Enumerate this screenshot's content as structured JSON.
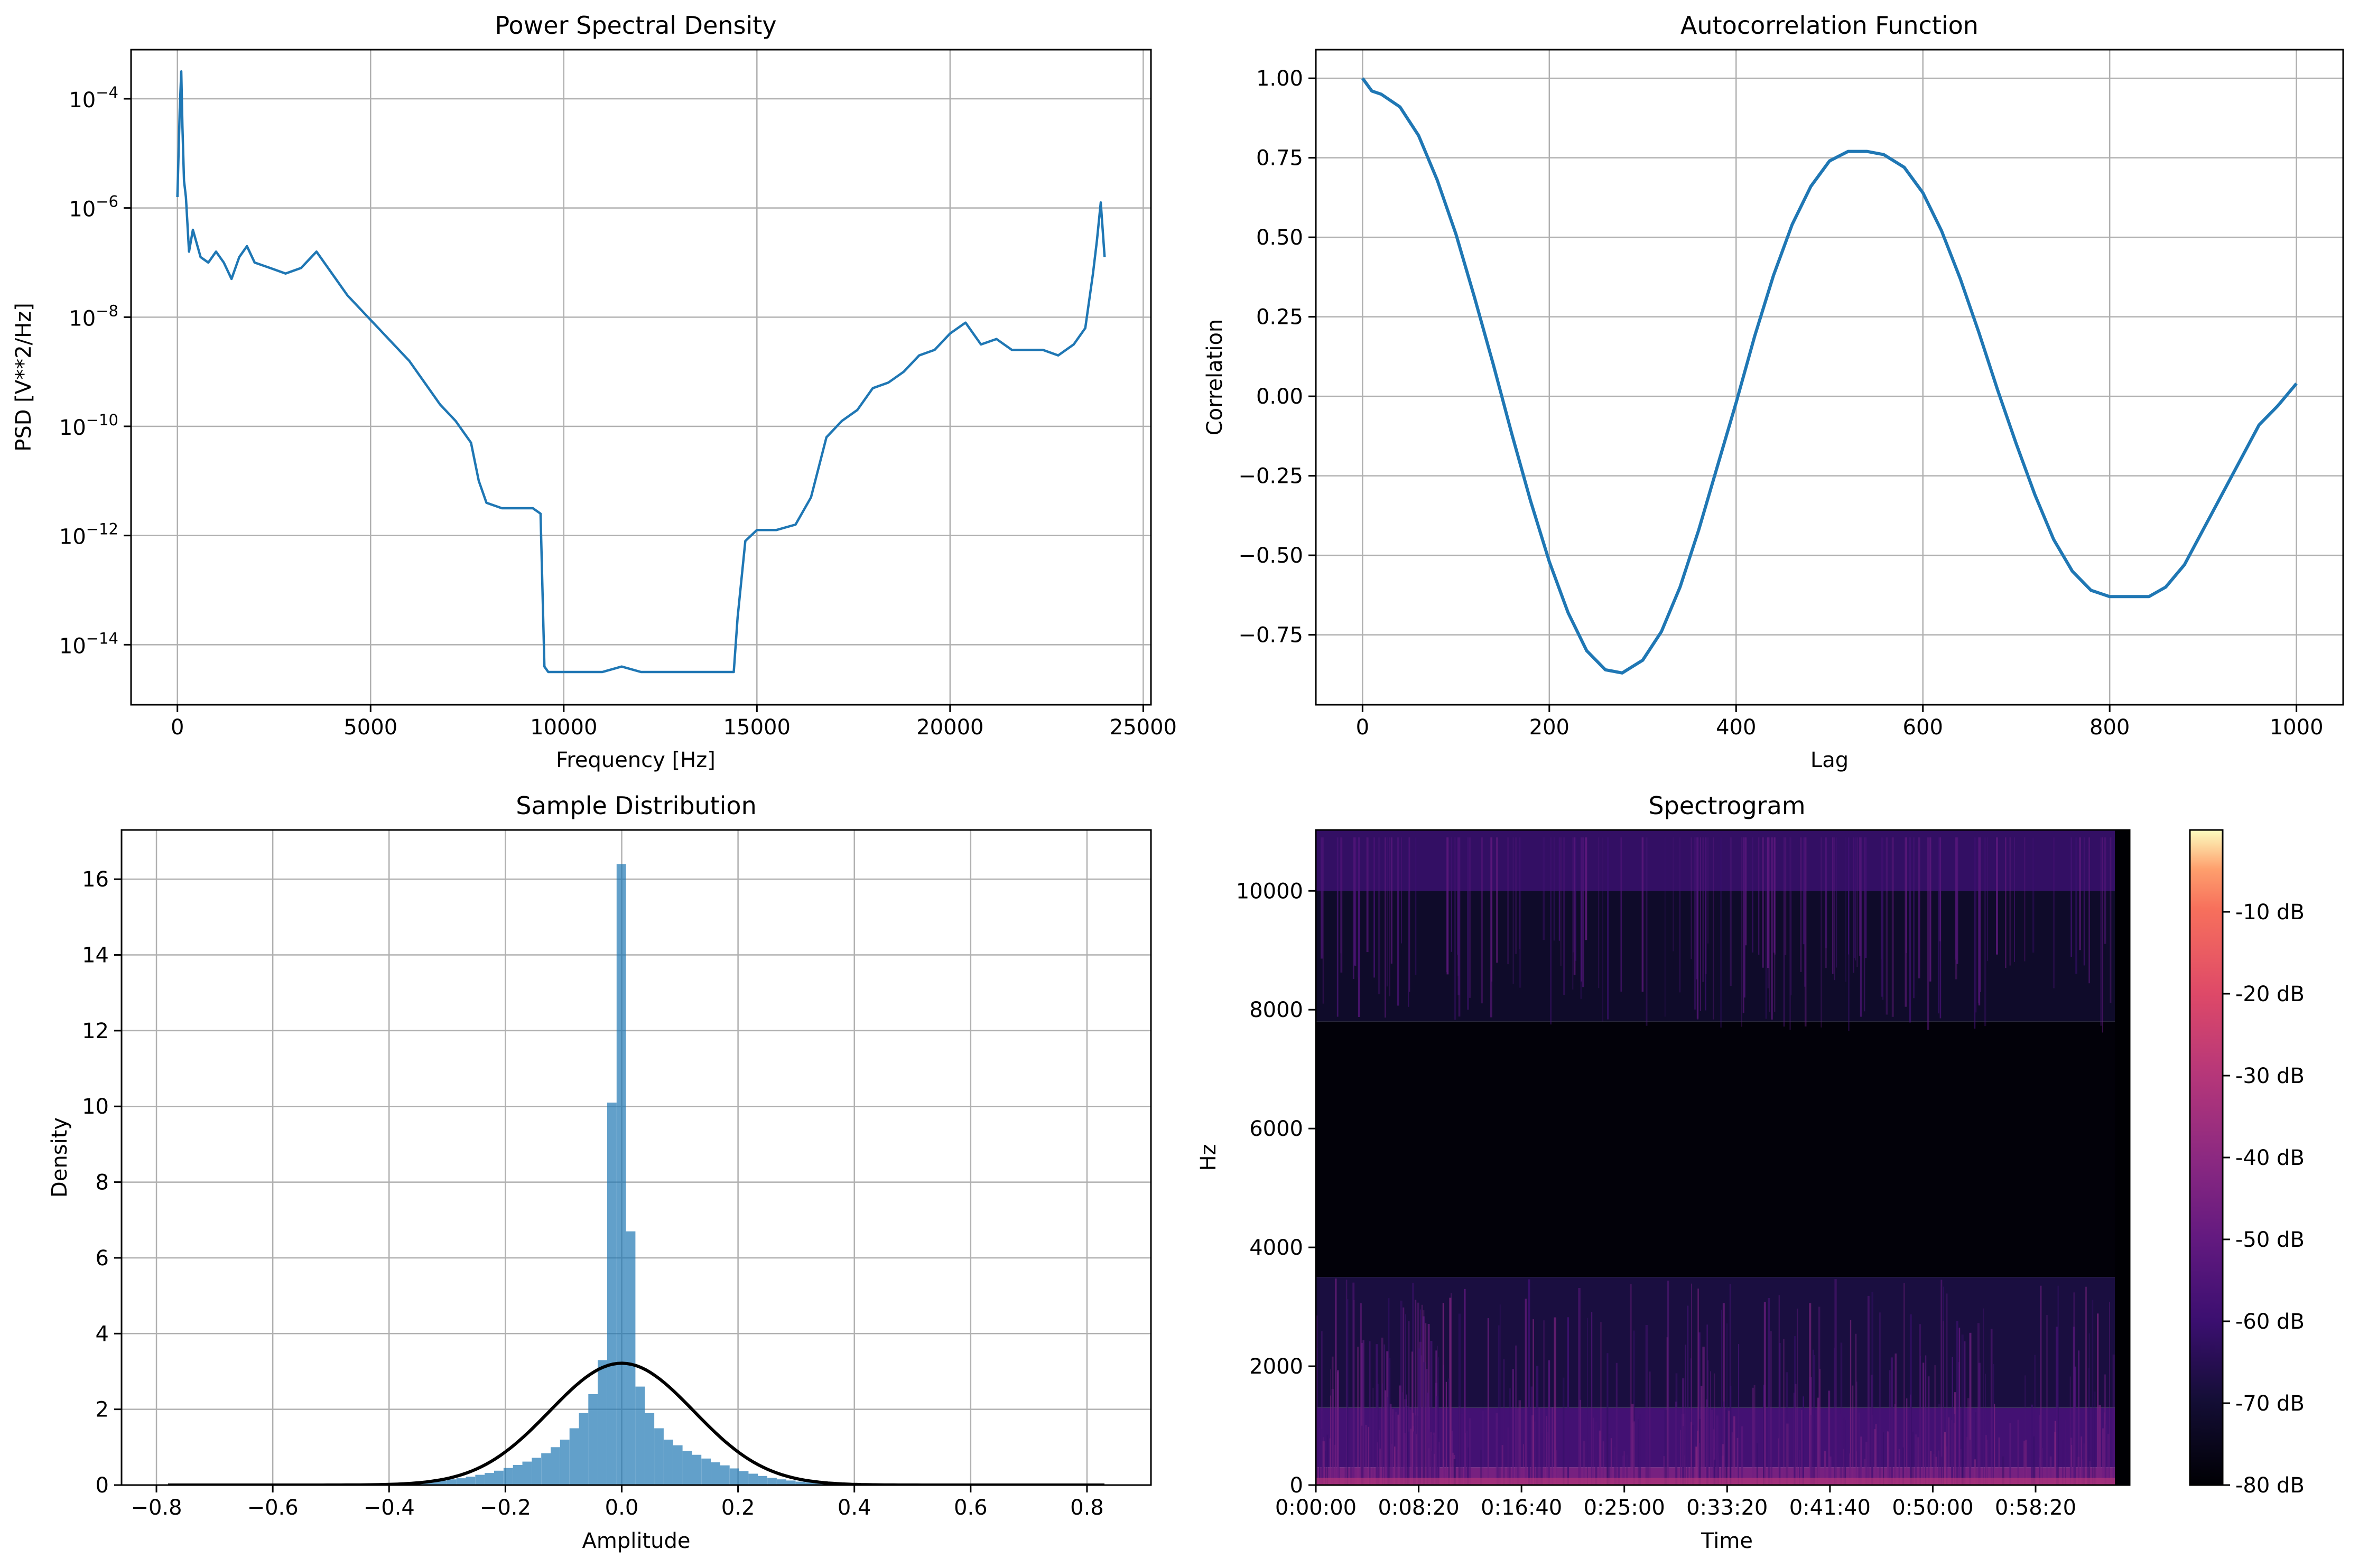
{
  "colors": {
    "line": "#1f77b4",
    "hist": "#1f77b4",
    "grid": "#b0b0b0",
    "normal": "#000000"
  },
  "chart_data": [
    {
      "type": "line",
      "title": "Power Spectral Density",
      "xlabel": "Frequency [Hz]",
      "ylabel": "PSD [V**2/Hz]",
      "yscale": "log",
      "xlim": [
        -1200,
        25200
      ],
      "ylim_log10": [
        -15.1,
        -3.1
      ],
      "xticks": [
        0,
        5000,
        10000,
        15000,
        20000,
        25000
      ],
      "xtick_labels": [
        "0",
        "5000",
        "10000",
        "15000",
        "20000",
        "25000"
      ],
      "yticks_log10": [
        -14,
        -12,
        -10,
        -8,
        -6,
        -4
      ],
      "ytick_base": "10",
      "ytick_exponents": [
        "−14",
        "−12",
        "−10",
        "−8",
        "−6",
        "−4"
      ],
      "x": [
        0,
        60,
        100,
        130,
        170,
        220,
        300,
        400,
        600,
        800,
        1000,
        1200,
        1400,
        1600,
        1800,
        2000,
        2400,
        2800,
        3200,
        3600,
        4000,
        4400,
        4800,
        5200,
        5600,
        6000,
        6400,
        6800,
        7200,
        7600,
        7800,
        8000,
        8400,
        8800,
        9200,
        9400,
        9500,
        9600,
        10000,
        10500,
        11000,
        11500,
        12000,
        12500,
        13000,
        13500,
        14000,
        14400,
        14500,
        14700,
        15000,
        15500,
        16000,
        16400,
        16800,
        17200,
        17600,
        18000,
        18400,
        18800,
        19200,
        19600,
        20000,
        20400,
        20800,
        21200,
        21600,
        22000,
        22400,
        22800,
        23200,
        23500,
        23700,
        23800,
        23900,
        24000
      ],
      "y_log10": [
        -5.8,
        -4.2,
        -3.5,
        -4.5,
        -5.5,
        -5.8,
        -6.8,
        -6.4,
        -6.9,
        -7.0,
        -6.8,
        -7.0,
        -7.3,
        -6.9,
        -6.7,
        -7.0,
        -7.1,
        -7.2,
        -7.1,
        -6.8,
        -7.2,
        -7.6,
        -7.9,
        -8.2,
        -8.5,
        -8.8,
        -9.2,
        -9.6,
        -9.9,
        -10.3,
        -11.0,
        -11.4,
        -11.5,
        -11.5,
        -11.5,
        -11.6,
        -14.4,
        -14.5,
        -14.5,
        -14.5,
        -14.5,
        -14.4,
        -14.5,
        -14.5,
        -14.5,
        -14.5,
        -14.5,
        -14.5,
        -13.5,
        -12.1,
        -11.9,
        -11.9,
        -11.8,
        -11.3,
        -10.2,
        -9.9,
        -9.7,
        -9.3,
        -9.2,
        -9.0,
        -8.7,
        -8.6,
        -8.3,
        -8.1,
        -8.5,
        -8.4,
        -8.6,
        -8.6,
        -8.6,
        -8.7,
        -8.5,
        -8.2,
        -7.2,
        -6.6,
        -5.9,
        -6.9
      ]
    },
    {
      "type": "line",
      "title": "Autocorrelation Function",
      "xlabel": "Lag",
      "ylabel": "Correlation",
      "xlim": [
        -50,
        1050
      ],
      "ylim": [
        -0.97,
        1.09
      ],
      "xticks": [
        0,
        200,
        400,
        600,
        800,
        1000
      ],
      "xtick_labels": [
        "0",
        "200",
        "400",
        "600",
        "800",
        "1000"
      ],
      "yticks": [
        -0.75,
        -0.5,
        -0.25,
        0.0,
        0.25,
        0.5,
        0.75,
        1.0
      ],
      "ytick_labels": [
        "−0.75",
        "−0.50",
        "−0.25",
        "0.00",
        "0.25",
        "0.50",
        "0.75",
        "1.00"
      ],
      "x": [
        0,
        10,
        20,
        40,
        60,
        80,
        100,
        120,
        140,
        160,
        180,
        200,
        220,
        240,
        260,
        278,
        300,
        320,
        340,
        360,
        380,
        400,
        420,
        440,
        460,
        480,
        500,
        520,
        540,
        558,
        580,
        600,
        620,
        640,
        660,
        680,
        700,
        720,
        740,
        760,
        780,
        800,
        820,
        842,
        860,
        880,
        900,
        920,
        940,
        960,
        980,
        1000
      ],
      "y": [
        1.0,
        0.96,
        0.95,
        0.91,
        0.82,
        0.68,
        0.51,
        0.31,
        0.1,
        -0.12,
        -0.33,
        -0.52,
        -0.68,
        -0.8,
        -0.86,
        -0.87,
        -0.83,
        -0.74,
        -0.6,
        -0.42,
        -0.22,
        -0.02,
        0.19,
        0.38,
        0.54,
        0.66,
        0.74,
        0.77,
        0.77,
        0.76,
        0.72,
        0.64,
        0.52,
        0.37,
        0.2,
        0.02,
        -0.15,
        -0.31,
        -0.45,
        -0.55,
        -0.61,
        -0.63,
        -0.63,
        -0.63,
        -0.6,
        -0.53,
        -0.42,
        -0.31,
        -0.2,
        -0.09,
        -0.03,
        0.04
      ]
    },
    {
      "type": "histogram",
      "title": "Sample Distribution",
      "xlabel": "Amplitude",
      "ylabel": "Density",
      "xlim": [
        -0.86,
        0.91
      ],
      "ylim": [
        0,
        17.3
      ],
      "xticks": [
        -0.8,
        -0.6,
        -0.4,
        -0.2,
        0.0,
        0.2,
        0.4,
        0.6,
        0.8
      ],
      "xtick_labels": [
        "−0.8",
        "−0.6",
        "−0.4",
        "−0.2",
        "0.0",
        "0.2",
        "0.4",
        "0.6",
        "0.8"
      ],
      "yticks": [
        0,
        2,
        4,
        6,
        8,
        10,
        12,
        14,
        16
      ],
      "ytick_labels": [
        "0",
        "2",
        "4",
        "6",
        "8",
        "10",
        "12",
        "14",
        "16"
      ],
      "bin_width": 0.0162,
      "bin_start": -0.43,
      "values": [
        0.01,
        0.02,
        0.03,
        0.04,
        0.05,
        0.07,
        0.09,
        0.12,
        0.15,
        0.18,
        0.22,
        0.27,
        0.32,
        0.38,
        0.45,
        0.53,
        0.62,
        0.72,
        0.84,
        1.0,
        1.2,
        1.5,
        1.9,
        2.4,
        3.3,
        10.1,
        16.4,
        6.7,
        2.6,
        1.9,
        1.5,
        1.2,
        1.05,
        0.9,
        0.8,
        0.7,
        0.6,
        0.52,
        0.44,
        0.37,
        0.3,
        0.24,
        0.19,
        0.15,
        0.12,
        0.09,
        0.07,
        0.05,
        0.04,
        0.03,
        0.02,
        0.01
      ],
      "normal_fit": {
        "mean": 0.0,
        "std": 0.124,
        "x_range": [
          -0.78,
          0.83
        ]
      }
    },
    {
      "type": "heatmap",
      "title": "Spectrogram",
      "xlabel": "Time",
      "ylabel": "Hz",
      "ylim": [
        0,
        11025
      ],
      "yticks": [
        0,
        2000,
        4000,
        6000,
        8000,
        10000
      ],
      "ytick_labels": [
        "0",
        "2000",
        "4000",
        "6000",
        "8000",
        "10000"
      ],
      "xtick_labels": [
        "0:00:00",
        "0:08:20",
        "0:16:40",
        "0:25:00",
        "0:33:20",
        "0:41:40",
        "0:50:00",
        "0:58:20"
      ],
      "xticks_seconds": [
        0,
        500,
        1000,
        1500,
        2000,
        2500,
        3000,
        3500
      ],
      "xlim_seconds": [
        0,
        3500
      ],
      "colormap": "magma",
      "colorbar_ticks_db": [
        -10,
        -20,
        -30,
        -40,
        -50,
        -60,
        -70,
        -80
      ],
      "colorbar_tick_labels": [
        "-10 dB",
        "-20 dB",
        "-30 dB",
        "-40 dB",
        "-50 dB",
        "-60 dB",
        "-70 dB",
        "-80 dB"
      ],
      "colorbar_range_db": [
        -80,
        0
      ],
      "band_levels_db": [
        {
          "from_hz": 0,
          "to_hz": 300,
          "db": -45
        },
        {
          "from_hz": 300,
          "to_hz": 1300,
          "db": -58
        },
        {
          "from_hz": 1300,
          "to_hz": 3500,
          "db": -68
        },
        {
          "from_hz": 3500,
          "to_hz": 7800,
          "db": -79
        },
        {
          "from_hz": 7800,
          "to_hz": 10000,
          "db": -72
        },
        {
          "from_hz": 10000,
          "to_hz": 11025,
          "db": -62
        }
      ]
    }
  ]
}
